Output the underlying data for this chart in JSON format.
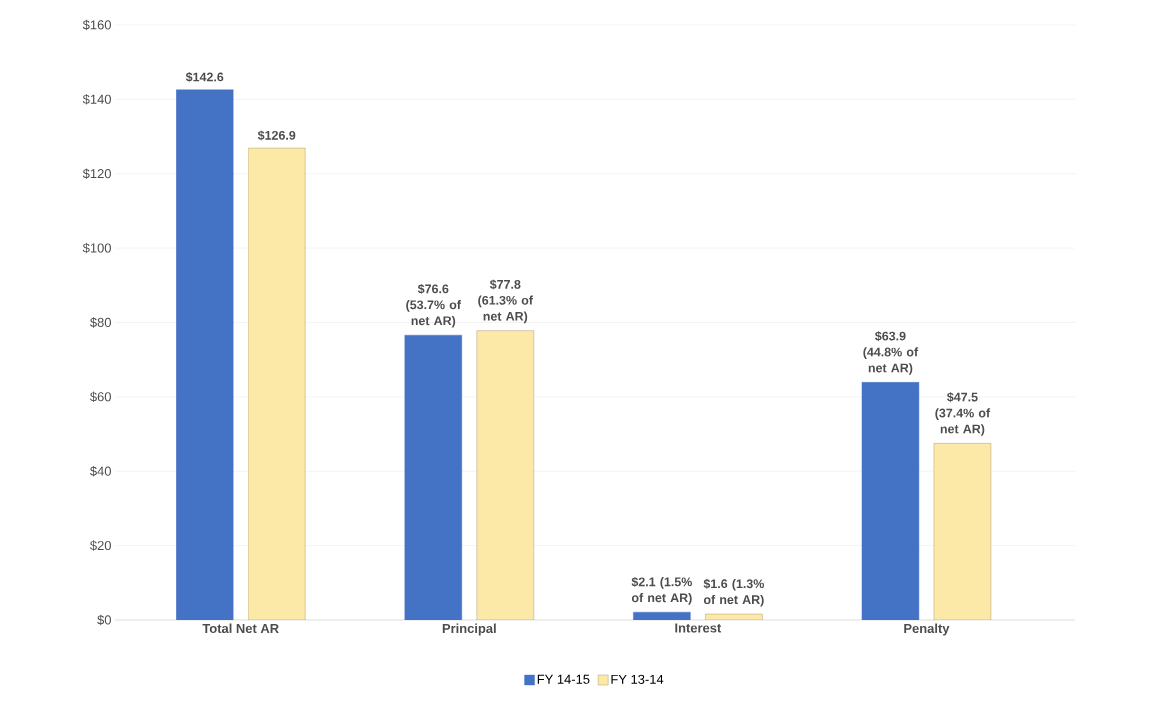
{
  "chart_data": {
    "type": "bar",
    "categories": [
      "Total Net AR",
      "Principal",
      "Interest",
      "Penalty"
    ],
    "series": [
      {
        "name": "FY 14-15",
        "color": "#4472c4",
        "values": [
          142.6,
          76.6,
          2.1,
          63.9
        ],
        "value_labels": [
          "$142.6",
          "$76.6 (53.7% of net AR)",
          "$2.1 (1.5% of net AR)",
          "$63.9 (44.8% of net AR)"
        ]
      },
      {
        "name": "FY 13-14",
        "color": "#fde9a7",
        "values": [
          126.9,
          77.8,
          1.6,
          47.5
        ],
        "value_labels": [
          "$126.9",
          "$77.8 (61.3% of net AR)",
          "$1.6 (1.3% of net AR)",
          "$47.5 (37.4% of net AR)"
        ]
      }
    ],
    "ylim": [
      0,
      160
    ],
    "yticks": [
      {
        "value": 0,
        "label": "$0"
      },
      {
        "value": 20,
        "label": "$20"
      },
      {
        "value": 40,
        "label": "$40"
      },
      {
        "value": 60,
        "label": "$60"
      },
      {
        "value": 80,
        "label": "$80"
      },
      {
        "value": 100,
        "label": "$100"
      },
      {
        "value": 120,
        "label": "$120"
      },
      {
        "value": 140,
        "label": "$140"
      },
      {
        "value": 160,
        "label": "$160"
      }
    ],
    "grid": "y",
    "legend": "bottom"
  }
}
